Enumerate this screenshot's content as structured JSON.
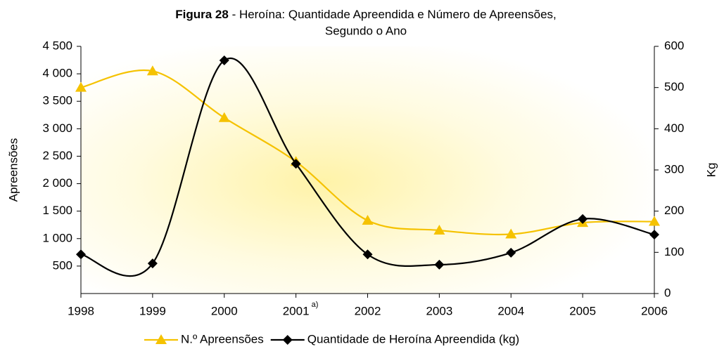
{
  "chart_data": {
    "type": "line",
    "title_prefix": "Figura 28",
    "title": [
      "- Heroína: Quantidade Apreendida e Número de Apreensões,",
      "Segundo o Ano"
    ],
    "y_label": "Apreensões",
    "y2_label": "Kg",
    "annotation": "a)",
    "categories": [
      "1998",
      "1999",
      "2000",
      "2001",
      "2002",
      "2003",
      "2004",
      "2005",
      "2006"
    ],
    "series": [
      {
        "name": "N.º Apreensões",
        "color": "#f5c200",
        "marker": "triangle",
        "values": [
          3750,
          4050,
          3200,
          2400,
          1330,
          1150,
          1080,
          1290,
          1310
        ]
      },
      {
        "name": "Quantidade de Heroína Apreendida (kg)",
        "color": "#000000",
        "marker": "diamond",
        "axis": "y2",
        "values": [
          95,
          73,
          566,
          315,
          95,
          70,
          99,
          181,
          143
        ]
      }
    ],
    "ylim": [
      0,
      4500
    ],
    "yticks": [
      500,
      {
        "value": 1000,
        "label": "1 000"
      },
      {
        "value": 1500,
        "label": "1 500"
      },
      {
        "value": 2000,
        "label": "2 000"
      },
      {
        "value": 2500,
        "label": "2 500"
      },
      {
        "value": 3000,
        "label": "3 000"
      },
      {
        "value": 3500,
        "label": "3 500"
      },
      {
        "value": 4000,
        "label": "4 000"
      },
      {
        "value": 4500,
        "label": "4 500"
      }
    ],
    "y2lim": [
      0,
      600
    ],
    "y2ticks": [
      0,
      100,
      200,
      300,
      400,
      500,
      600
    ],
    "grid": false,
    "legend": "bottom",
    "smooth": true
  }
}
